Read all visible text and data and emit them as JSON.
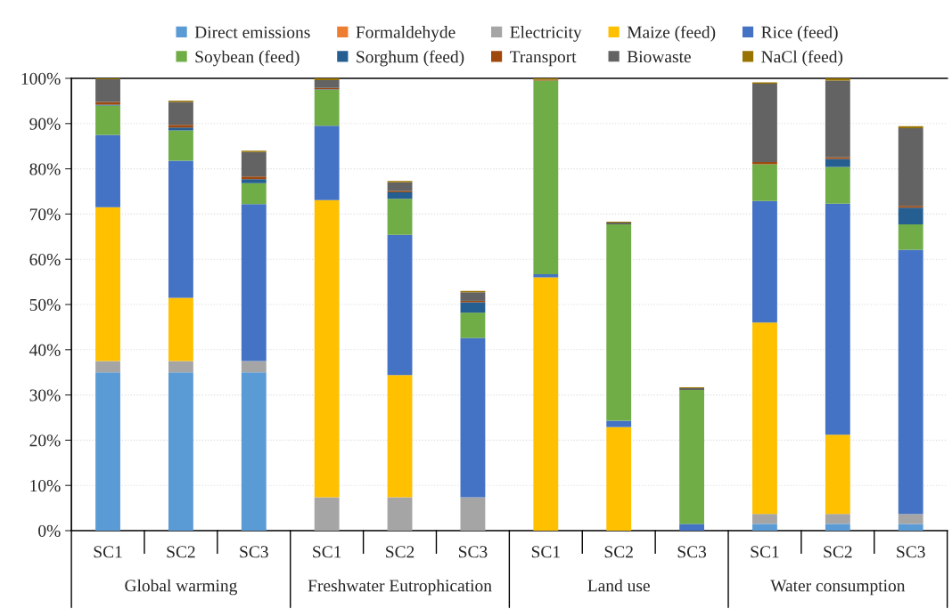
{
  "chart_data": {
    "type": "bar",
    "stacked": true,
    "categories": [
      "SC1",
      "SC2",
      "SC3",
      "SC1",
      "SC2",
      "SC3",
      "SC1",
      "SC2",
      "SC3",
      "SC1",
      "SC2",
      "SC3"
    ],
    "series": [
      {
        "name": "Direct emissions",
        "color": "#5b9bd5",
        "values": [
          35,
          35,
          35,
          0,
          0,
          0,
          0,
          0,
          0,
          1.5,
          1.5,
          1.5
        ]
      },
      {
        "name": "Formaldehyde",
        "color": "#ed7d31",
        "values": [
          0,
          0,
          0,
          0,
          0,
          0,
          0,
          0,
          0,
          0,
          0,
          0
        ]
      },
      {
        "name": "Electricity",
        "color": "#a5a5a5",
        "values": [
          2.5,
          2.5,
          2.5,
          7.4,
          7.4,
          7.4,
          0,
          0,
          0,
          2.2,
          2.2,
          2.2
        ]
      },
      {
        "name": "Maize (feed)",
        "color": "#ffc000",
        "values": [
          34,
          14,
          0,
          65.7,
          27.0,
          0,
          56.0,
          22.9,
          0,
          42.3,
          17.5,
          0
        ]
      },
      {
        "name": "Rice (feed)",
        "color": "#4472c4",
        "values": [
          16,
          30.3,
          34.7,
          16.4,
          31.0,
          35.2,
          0.7,
          1.4,
          1.5,
          26.9,
          51.1,
          58.4
        ]
      },
      {
        "name": "Soybean (feed)",
        "color": "#70ad47",
        "values": [
          6.5,
          6.7,
          4.6,
          8.0,
          8.0,
          5.6,
          42.8,
          43.4,
          29.6,
          8.1,
          8.1,
          5.6
        ]
      },
      {
        "name": "Sorghum (feed)",
        "color": "#255e91",
        "values": [
          0.2,
          0.6,
          0.9,
          0.1,
          1.4,
          2.3,
          0,
          0,
          0,
          0,
          1.8,
          3.7
        ]
      },
      {
        "name": "Transport",
        "color": "#9e480e",
        "values": [
          0.6,
          0.6,
          0.6,
          0.3,
          0.3,
          0.3,
          0.2,
          0,
          0,
          0.5,
          0.4,
          0.4
        ]
      },
      {
        "name": "Biowaste",
        "color": "#636363",
        "values": [
          5,
          5.1,
          5.4,
          1.7,
          1.9,
          1.9,
          0,
          0.4,
          0.4,
          17.3,
          16.9,
          17.2
        ]
      },
      {
        "name": "NaCl (feed)",
        "color": "#997300",
        "values": [
          0.2,
          0.3,
          0.3,
          0.4,
          0.3,
          0.3,
          0.3,
          0.2,
          0.2,
          0.3,
          0.5,
          0.4
        ]
      }
    ],
    "ylim": [
      0,
      100
    ],
    "yticks": [
      {
        "value": 0,
        "label": "0%"
      },
      {
        "value": 10,
        "label": "10%"
      },
      {
        "value": 20,
        "label": "20%"
      },
      {
        "value": 30,
        "label": "30%"
      },
      {
        "value": 40,
        "label": "40%"
      },
      {
        "value": 50,
        "label": "50%"
      },
      {
        "value": 60,
        "label": "60%"
      },
      {
        "value": 70,
        "label": "70%"
      },
      {
        "value": 80,
        "label": "80%"
      },
      {
        "value": 90,
        "label": "90%"
      },
      {
        "value": 100,
        "label": "100%"
      }
    ],
    "annotations": [
      "Global warming",
      "Freshwater Eutrophication",
      "Land use",
      "Water consumption"
    ],
    "grid": "y",
    "legend": "top"
  }
}
